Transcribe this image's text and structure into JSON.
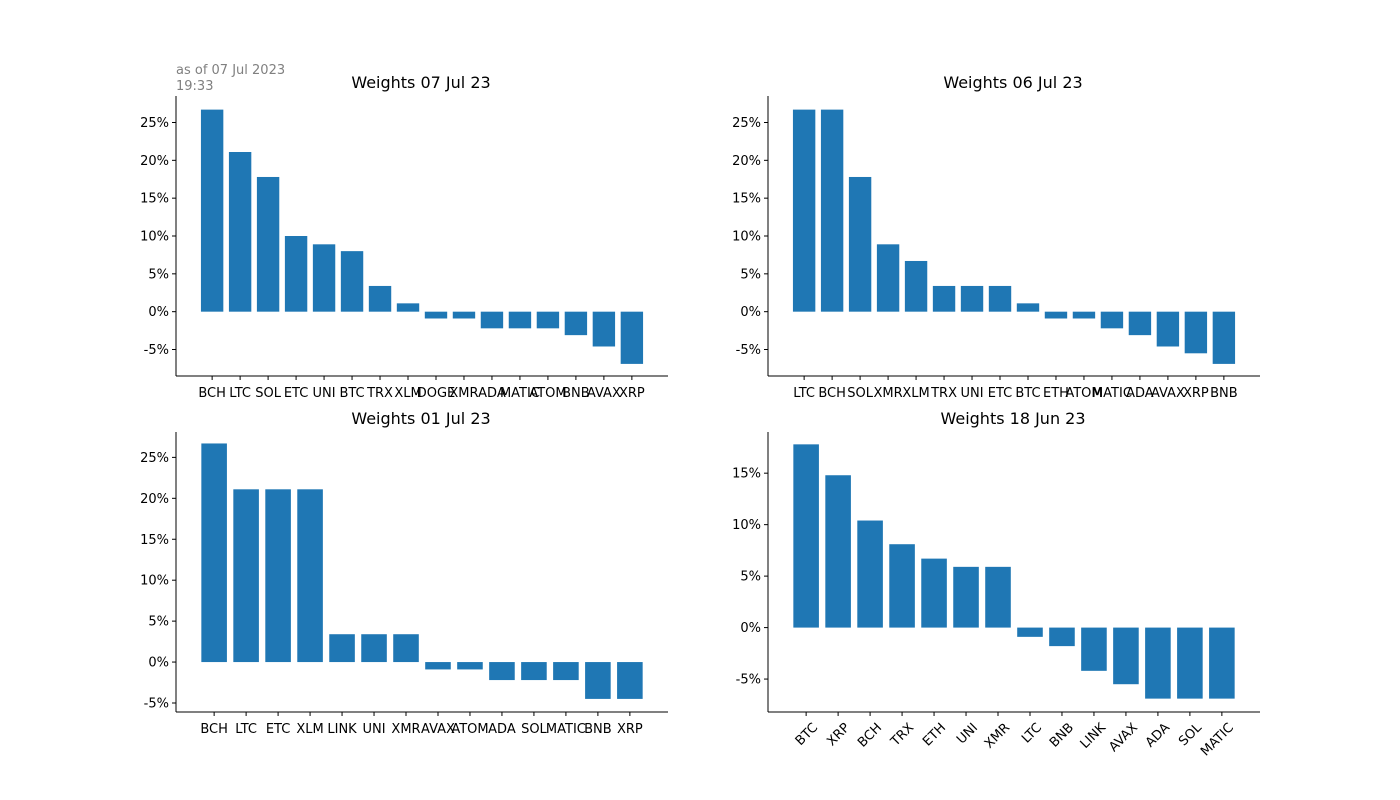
{
  "annotation": {
    "line1": "as of 07 Jul 2023",
    "line2": "19:33"
  },
  "colors": {
    "bar": "#1f77b4",
    "annotation": "#808080"
  },
  "chart_data": [
    {
      "type": "bar",
      "title": "Weights 07 Jul 23",
      "categories": [
        "BCH",
        "LTC",
        "SOL",
        "ETC",
        "UNI",
        "BTC",
        "TRX",
        "XLM",
        "DOGE",
        "XMR",
        "ADA",
        "MATIC",
        "ATOM",
        "BNB",
        "AVAX",
        "XRP"
      ],
      "values": [
        26.7,
        21.1,
        17.8,
        10.0,
        8.9,
        8.0,
        3.4,
        1.1,
        -0.9,
        -0.9,
        -2.2,
        -2.2,
        -2.2,
        -3.1,
        -4.6,
        -6.9
      ],
      "yticks": [
        -5,
        0,
        5,
        10,
        15,
        20,
        25
      ],
      "ytick_labels": [
        "-5%",
        "0%",
        "5%",
        "10%",
        "15%",
        "20%",
        "25%"
      ],
      "ylim": [
        -8.5,
        28.5
      ],
      "xlabel_rotation": 0,
      "xlabel": "",
      "ylabel": "",
      "grid": false
    },
    {
      "type": "bar",
      "title": "Weights 06 Jul 23",
      "categories": [
        "LTC",
        "BCH",
        "SOL",
        "XMR",
        "XLM",
        "TRX",
        "UNI",
        "ETC",
        "BTC",
        "ETH",
        "ATOM",
        "MATIC",
        "ADA",
        "AVAX",
        "XRP",
        "BNB"
      ],
      "values": [
        26.7,
        26.7,
        17.8,
        8.9,
        6.7,
        3.4,
        3.4,
        3.4,
        1.1,
        -0.9,
        -0.9,
        -2.2,
        -3.1,
        -4.6,
        -5.5,
        -6.9
      ],
      "yticks": [
        -5,
        0,
        5,
        10,
        15,
        20,
        25
      ],
      "ytick_labels": [
        "-5%",
        "0%",
        "5%",
        "10%",
        "15%",
        "20%",
        "25%"
      ],
      "ylim": [
        -8.5,
        28.5
      ],
      "xlabel_rotation": 0,
      "xlabel": "",
      "ylabel": "",
      "grid": false
    },
    {
      "type": "bar",
      "title": "Weights 01 Jul 23",
      "categories": [
        "BCH",
        "LTC",
        "ETC",
        "XLM",
        "LINK",
        "UNI",
        "XMR",
        "AVAX",
        "ATOM",
        "ADA",
        "SOL",
        "MATIC",
        "BNB",
        "XRP"
      ],
      "values": [
        26.7,
        21.1,
        21.1,
        21.1,
        3.4,
        3.4,
        3.4,
        -0.9,
        -0.9,
        -2.2,
        -2.2,
        -2.2,
        -4.5,
        -4.5
      ],
      "yticks": [
        -5,
        0,
        5,
        10,
        15,
        20,
        25
      ],
      "ytick_labels": [
        "-5%",
        "0%",
        "5%",
        "10%",
        "15%",
        "20%",
        "25%"
      ],
      "ylim": [
        -6.1,
        28.1
      ],
      "xlabel_rotation": 0,
      "xlabel": "",
      "ylabel": "",
      "grid": false
    },
    {
      "type": "bar",
      "title": "Weights 18 Jun 23",
      "categories": [
        "BTC",
        "XRP",
        "BCH",
        "TRX",
        "ETH",
        "UNI",
        "XMR",
        "LTC",
        "BNB",
        "LINK",
        "AVAX",
        "ADA",
        "SOL",
        "MATIC"
      ],
      "values": [
        17.8,
        14.8,
        10.4,
        8.1,
        6.7,
        5.9,
        5.9,
        -0.9,
        -1.8,
        -4.2,
        -5.5,
        -6.9,
        -6.9,
        -6.9
      ],
      "yticks": [
        -5,
        0,
        5,
        10,
        15
      ],
      "ytick_labels": [
        "-5%",
        "0%",
        "5%",
        "10%",
        "15%"
      ],
      "ylim": [
        -8.2,
        19.0
      ],
      "xlabel_rotation": -45,
      "xlabel": "",
      "ylabel": "",
      "grid": false
    }
  ]
}
